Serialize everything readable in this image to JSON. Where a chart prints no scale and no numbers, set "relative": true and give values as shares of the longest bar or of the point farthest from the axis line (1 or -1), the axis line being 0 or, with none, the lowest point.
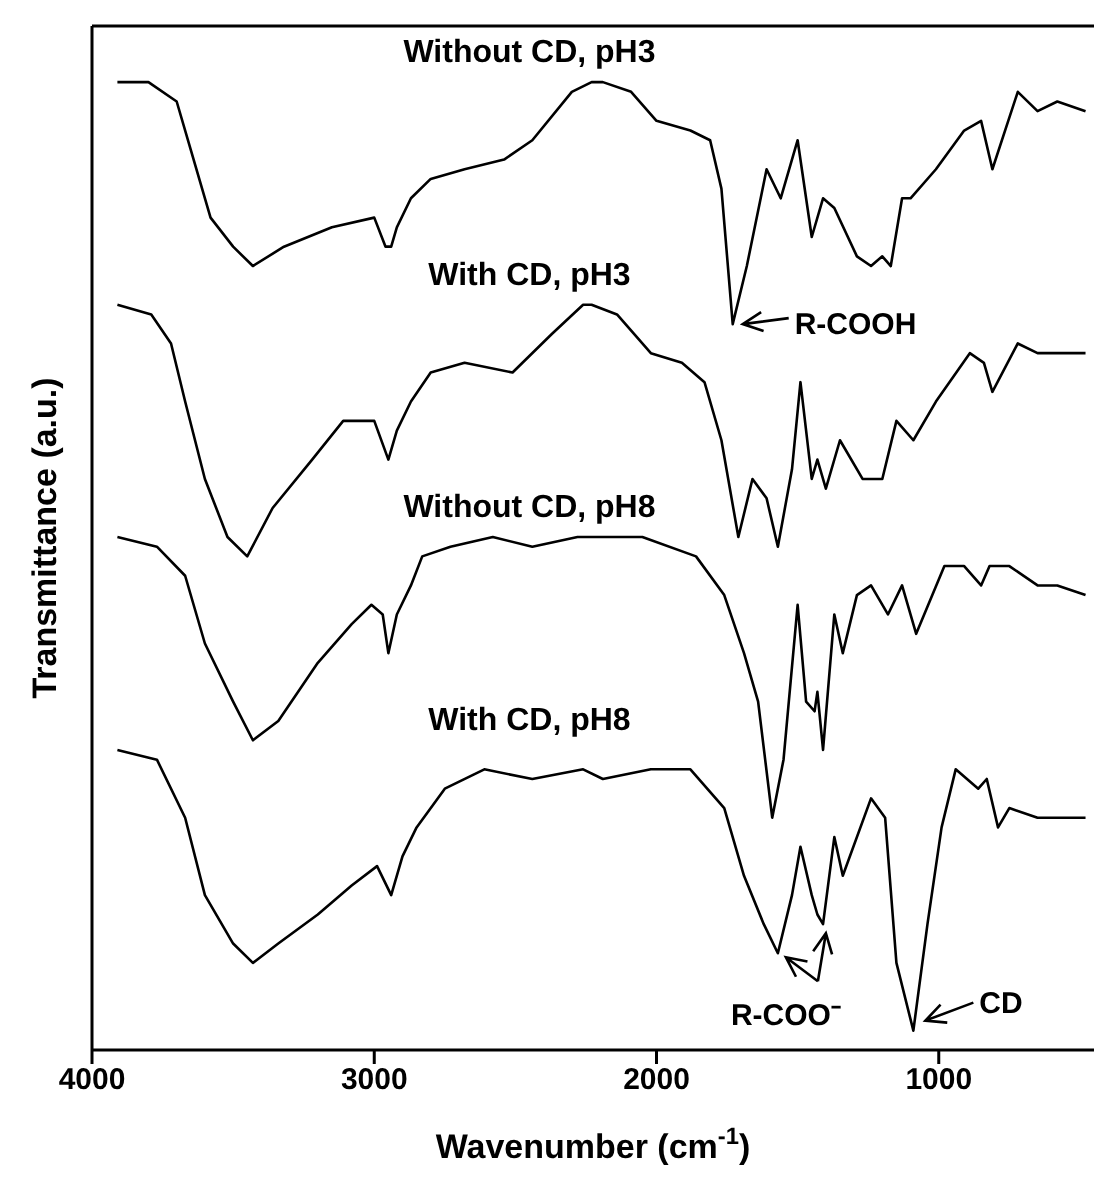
{
  "chart_data": {
    "type": "line",
    "relative": true,
    "xlabel": "Wavenumber (cm$^{-1}$)",
    "ylabel": "Transmittance (a.u.)",
    "xlim": [
      4000,
      450
    ],
    "xticks": [
      4000,
      3000,
      2000,
      1000
    ],
    "grid": false,
    "legend": false,
    "marker": "none",
    "line_style": "solid",
    "series": [
      {
        "name": "Without CD, pH3",
        "color": "#000000",
        "x": [
          3910,
          3800,
          3700,
          3650,
          3580,
          3500,
          3430,
          3320,
          3150,
          3000,
          2960,
          2940,
          2920,
          2870,
          2800,
          2680,
          2540,
          2440,
          2300,
          2230,
          2190,
          2090,
          2000,
          1880,
          1810,
          1770,
          1730,
          1680,
          1610,
          1560,
          1500,
          1450,
          1410,
          1370,
          1290,
          1240,
          1200,
          1170,
          1130,
          1100,
          1010,
          910,
          850,
          810,
          720,
          650,
          580,
          480
        ],
        "values": [
          1.0,
          1.0,
          0.98,
          0.93,
          0.86,
          0.83,
          0.81,
          0.83,
          0.85,
          0.86,
          0.83,
          0.83,
          0.85,
          0.88,
          0.9,
          0.91,
          0.92,
          0.94,
          0.99,
          1.0,
          1.0,
          0.99,
          0.96,
          0.95,
          0.94,
          0.89,
          0.75,
          0.81,
          0.91,
          0.88,
          0.94,
          0.84,
          0.88,
          0.87,
          0.82,
          0.81,
          0.82,
          0.81,
          0.88,
          0.88,
          0.91,
          0.95,
          0.96,
          0.91,
          0.99,
          0.97,
          0.98,
          0.97
        ]
      },
      {
        "name": "With CD, pH3",
        "color": "#000000",
        "x": [
          3910,
          3790,
          3720,
          3670,
          3600,
          3520,
          3450,
          3360,
          3220,
          3110,
          3000,
          2950,
          2920,
          2870,
          2800,
          2680,
          2510,
          2370,
          2260,
          2230,
          2140,
          2020,
          1910,
          1830,
          1770,
          1710,
          1660,
          1610,
          1570,
          1520,
          1490,
          1450,
          1430,
          1400,
          1350,
          1270,
          1200,
          1150,
          1090,
          1010,
          890,
          840,
          810,
          720,
          650,
          580,
          480
        ],
        "values": [
          0.77,
          0.76,
          0.73,
          0.67,
          0.59,
          0.53,
          0.51,
          0.56,
          0.61,
          0.65,
          0.65,
          0.61,
          0.64,
          0.67,
          0.7,
          0.71,
          0.7,
          0.74,
          0.77,
          0.77,
          0.76,
          0.72,
          0.71,
          0.69,
          0.63,
          0.53,
          0.59,
          0.57,
          0.52,
          0.6,
          0.69,
          0.59,
          0.61,
          0.58,
          0.63,
          0.59,
          0.59,
          0.65,
          0.63,
          0.67,
          0.72,
          0.71,
          0.68,
          0.73,
          0.72,
          0.72,
          0.72
        ]
      },
      {
        "name": "Without CD, pH8",
        "color": "#000000",
        "x": [
          3910,
          3770,
          3670,
          3600,
          3500,
          3430,
          3340,
          3200,
          3080,
          3010,
          2970,
          2950,
          2920,
          2870,
          2830,
          2730,
          2580,
          2440,
          2280,
          2210,
          2050,
          1860,
          1760,
          1690,
          1640,
          1590,
          1550,
          1500,
          1470,
          1440,
          1430,
          1410,
          1370,
          1340,
          1290,
          1240,
          1180,
          1130,
          1080,
          980,
          910,
          850,
          820,
          750,
          650,
          580,
          480
        ],
        "values": [
          0.53,
          0.52,
          0.49,
          0.42,
          0.36,
          0.32,
          0.34,
          0.4,
          0.44,
          0.46,
          0.45,
          0.41,
          0.45,
          0.48,
          0.51,
          0.52,
          0.53,
          0.52,
          0.53,
          0.53,
          0.53,
          0.51,
          0.47,
          0.41,
          0.36,
          0.24,
          0.3,
          0.46,
          0.36,
          0.35,
          0.37,
          0.31,
          0.45,
          0.41,
          0.47,
          0.48,
          0.45,
          0.48,
          0.43,
          0.5,
          0.5,
          0.48,
          0.5,
          0.5,
          0.48,
          0.48,
          0.47
        ]
      },
      {
        "name": "With CD, pH8",
        "color": "#000000",
        "x": [
          3910,
          3770,
          3670,
          3600,
          3500,
          3430,
          3340,
          3200,
          3080,
          2990,
          2940,
          2900,
          2850,
          2750,
          2610,
          2440,
          2260,
          2190,
          2020,
          1880,
          1760,
          1690,
          1620,
          1570,
          1520,
          1490,
          1450,
          1430,
          1410,
          1370,
          1340,
          1240,
          1190,
          1150,
          1090,
          1040,
          990,
          940,
          860,
          830,
          790,
          750,
          650,
          580,
          480
        ],
        "values": [
          0.31,
          0.3,
          0.24,
          0.16,
          0.11,
          0.09,
          0.11,
          0.14,
          0.17,
          0.19,
          0.16,
          0.2,
          0.23,
          0.27,
          0.29,
          0.28,
          0.29,
          0.28,
          0.29,
          0.29,
          0.25,
          0.18,
          0.13,
          0.1,
          0.16,
          0.21,
          0.16,
          0.14,
          0.13,
          0.22,
          0.18,
          0.26,
          0.24,
          0.09,
          0.02,
          0.13,
          0.23,
          0.29,
          0.27,
          0.28,
          0.23,
          0.25,
          0.24,
          0.24,
          0.24
        ]
      }
    ],
    "annotations": [
      {
        "text": "R-COOH",
        "x": 1730,
        "y": 0.75
      },
      {
        "text": "R-COO⁻",
        "x": 1570,
        "y": 0.1
      },
      {
        "text": "CD",
        "x": 1090,
        "y": 0.02
      }
    ]
  }
}
